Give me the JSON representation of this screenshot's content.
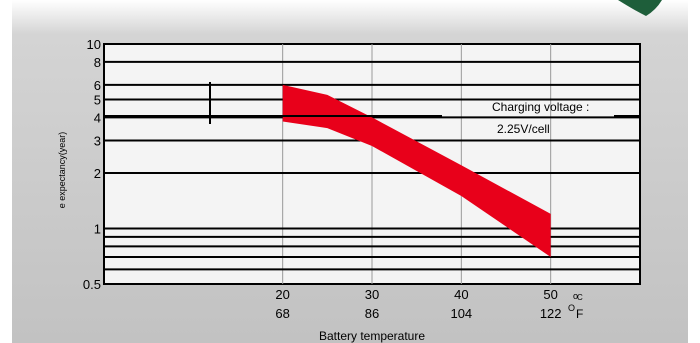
{
  "chart_data": {
    "type": "area",
    "title": "",
    "xlabel": "Battery temperature",
    "ylabel": "e    expectancy(year)",
    "y_scale": "log",
    "ylim": [
      0.5,
      10
    ],
    "xlim": [
      0,
      60
    ],
    "y_ticks": [
      "0.5",
      "1",
      "2",
      "3",
      "4",
      "5",
      "6",
      "8",
      "10"
    ],
    "x_ticks_celsius": [
      "20",
      "30",
      "40",
      "50"
    ],
    "x_ticks_fahrenheit": [
      "68",
      "86",
      "104",
      "122"
    ],
    "x_unit_celsius": "C",
    "x_unit_fahrenheit": "F",
    "grid": true,
    "series": [
      {
        "upper": [
          [
            20,
            6.0
          ],
          [
            25,
            5.3
          ],
          [
            30,
            4.0
          ],
          [
            40,
            2.2
          ],
          [
            50,
            1.2
          ]
        ],
        "lower": [
          [
            20,
            3.8
          ],
          [
            25,
            3.5
          ],
          [
            30,
            2.8
          ],
          [
            40,
            1.5
          ],
          [
            50,
            0.7
          ]
        ],
        "color": "#e8001a"
      }
    ],
    "annotations": [
      "Charging voltage :",
      "2.25V/cell"
    ]
  },
  "colors": {
    "background": "#ffffff",
    "panel": "#c7c7c7",
    "plot_bg": "#f4f4f4",
    "band": "#e8001a",
    "leaf": "#1e5e3a"
  }
}
